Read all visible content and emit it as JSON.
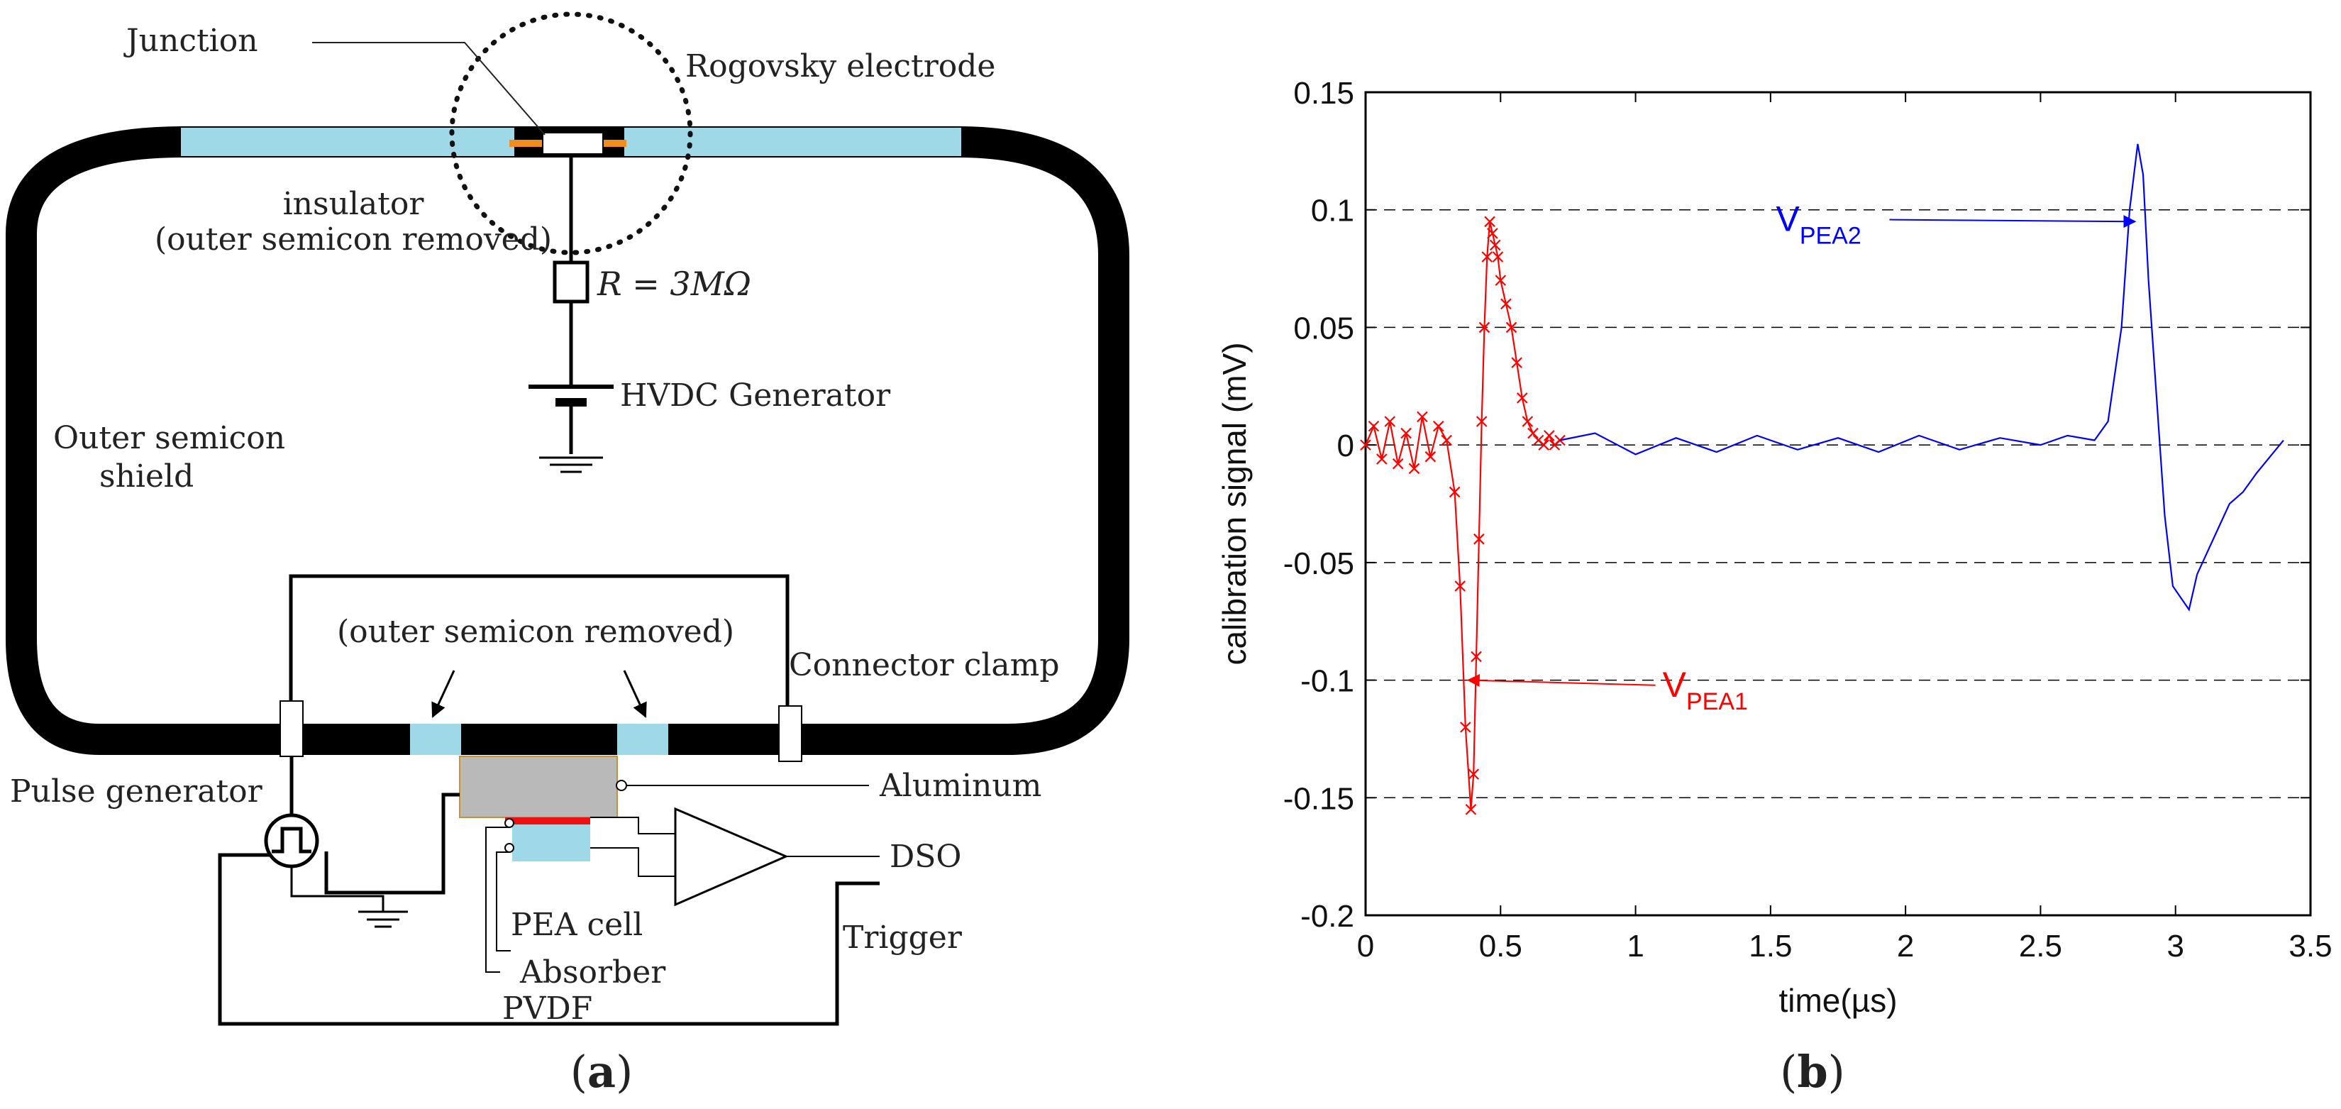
{
  "panel_a": {
    "caption_open": "(",
    "caption_letter": "a",
    "caption_close": ")",
    "labels": {
      "junction": "Junction",
      "rogovsky": "Rogovsky electrode",
      "insulator": "insulator",
      "outer_removed_1": "(outer semicon removed)",
      "resistor": "R = 3MΩ",
      "hvdc": "HVDC Generator",
      "outer_semicon_1": "Outer semicon",
      "outer_semicon_2": "shield",
      "outer_removed_2": "(outer semicon removed)",
      "connector": "Connector clamp",
      "pulse": "Pulse generator",
      "aluminum": "Aluminum",
      "dso": "DSO",
      "pea": "PEA cell",
      "trigger": "Trigger",
      "absorber": "Absorber",
      "pvdf": "PVDF"
    },
    "colors": {
      "cable": "#000000",
      "insulator": "#9fd8e6",
      "junction": "#f28c1c",
      "aluminum": "#b9b9b9",
      "pvdf": "#ee1111"
    },
    "icons": [
      "pulse-generator-icon",
      "ground-icon",
      "battery-icon",
      "resistor-icon",
      "amplifier-icon"
    ]
  },
  "panel_b": {
    "caption_open": "(",
    "caption_letter": "b",
    "caption_close": ")",
    "chart_data": {
      "type": "line",
      "title": "",
      "xlabel": "time(µs)",
      "ylabel": "calibration signal (mV)",
      "xlim": [
        0,
        3.5
      ],
      "ylim": [
        -0.2,
        0.15
      ],
      "x_ticks": [
        0,
        0.5,
        1,
        1.5,
        2,
        2.5,
        3,
        3.5
      ],
      "x_tick_labels": [
        "0",
        "0.5",
        "1",
        "1.5",
        "2",
        "2.5",
        "3",
        "3.5"
      ],
      "y_ticks": [
        -0.2,
        -0.15,
        -0.1,
        -0.05,
        0,
        0.05,
        0.1,
        0.15
      ],
      "y_tick_labels": [
        "-0.2",
        "-0.15",
        "-0.1",
        "-0.05",
        "0",
        "0.05",
        "0.1",
        "0.15"
      ],
      "grid": "horizontal dashed",
      "series": [
        {
          "name": "VPEA1",
          "color": "#ff0000",
          "marker": "x",
          "x": [
            0.0,
            0.03,
            0.06,
            0.09,
            0.12,
            0.15,
            0.18,
            0.21,
            0.24,
            0.27,
            0.3,
            0.33,
            0.35,
            0.37,
            0.39,
            0.4,
            0.41,
            0.42,
            0.43,
            0.44,
            0.45,
            0.46,
            0.47,
            0.48,
            0.49,
            0.5,
            0.52,
            0.54,
            0.56,
            0.58,
            0.6,
            0.62,
            0.64,
            0.66,
            0.68,
            0.7,
            0.72
          ],
          "y": [
            0.0,
            0.008,
            -0.006,
            0.01,
            -0.008,
            0.005,
            -0.01,
            0.012,
            -0.005,
            0.008,
            0.002,
            -0.02,
            -0.06,
            -0.12,
            -0.155,
            -0.14,
            -0.09,
            -0.04,
            0.01,
            0.05,
            0.08,
            0.095,
            0.09,
            0.085,
            0.08,
            0.07,
            0.06,
            0.05,
            0.035,
            0.02,
            0.01,
            0.005,
            0.002,
            0.0,
            0.004,
            0.0,
            0.002
          ]
        },
        {
          "name": "VPEA2",
          "color": "#0000ff",
          "marker": "none",
          "x": [
            0.72,
            0.85,
            1.0,
            1.15,
            1.3,
            1.45,
            1.6,
            1.75,
            1.9,
            2.05,
            2.2,
            2.35,
            2.5,
            2.6,
            2.7,
            2.75,
            2.8,
            2.83,
            2.86,
            2.88,
            2.9,
            2.93,
            2.96,
            2.99,
            3.02,
            3.05,
            3.08,
            3.12,
            3.16,
            3.2,
            3.25,
            3.3,
            3.35,
            3.4
          ],
          "y": [
            0.002,
            0.005,
            -0.004,
            0.003,
            -0.003,
            0.004,
            -0.002,
            0.003,
            -0.003,
            0.004,
            -0.002,
            0.003,
            0.0,
            0.004,
            0.002,
            0.01,
            0.05,
            0.1,
            0.128,
            0.115,
            0.07,
            0.02,
            -0.03,
            -0.06,
            -0.065,
            -0.07,
            -0.055,
            -0.045,
            -0.035,
            -0.025,
            -0.02,
            -0.012,
            -0.005,
            0.002
          ]
        }
      ],
      "annotations": [
        {
          "label_main": "V",
          "label_sub": "PEA1",
          "color": "#ff0000",
          "x": 1.1,
          "y": -0.107,
          "target_x": 0.38,
          "target_y": -0.1
        },
        {
          "label_main": "V",
          "label_sub": "PEA2",
          "color": "#0000ff",
          "x": 1.52,
          "y": 0.091,
          "target_x": 2.85,
          "target_y": 0.095
        }
      ]
    }
  }
}
